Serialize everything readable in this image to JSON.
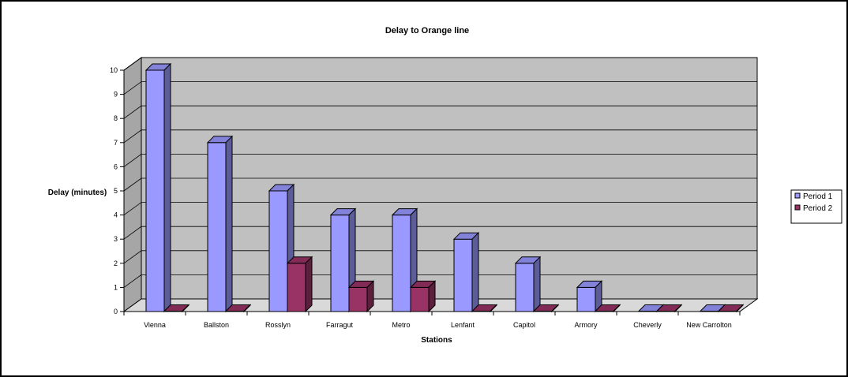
{
  "chart_data": {
    "type": "bar",
    "title": "Delay to Orange line",
    "xlabel": "Stations",
    "ylabel": "Delay (minutes)",
    "categories": [
      "Vienna",
      "Ballston",
      "Rosslyn",
      "Farragut",
      "Metro",
      "Lenfant",
      "Capitol",
      "Armory",
      "Cheverly",
      "New Carrolton"
    ],
    "series": [
      {
        "name": "Period 1",
        "values": [
          10,
          7,
          5,
          4,
          4,
          3,
          2,
          1,
          0,
          0
        ],
        "color": "#9999ff"
      },
      {
        "name": "Period 2",
        "values": [
          0,
          0,
          2,
          1,
          1,
          0,
          0,
          0,
          0,
          0
        ],
        "color": "#993366"
      }
    ],
    "ylim": [
      0,
      10
    ],
    "yticks": [
      "0",
      "1",
      "2",
      "3",
      "4",
      "5",
      "6",
      "7",
      "8",
      "9",
      "10"
    ],
    "grid": true,
    "legend": "right",
    "three_d": true,
    "wall_color": "#c0c0c0"
  }
}
